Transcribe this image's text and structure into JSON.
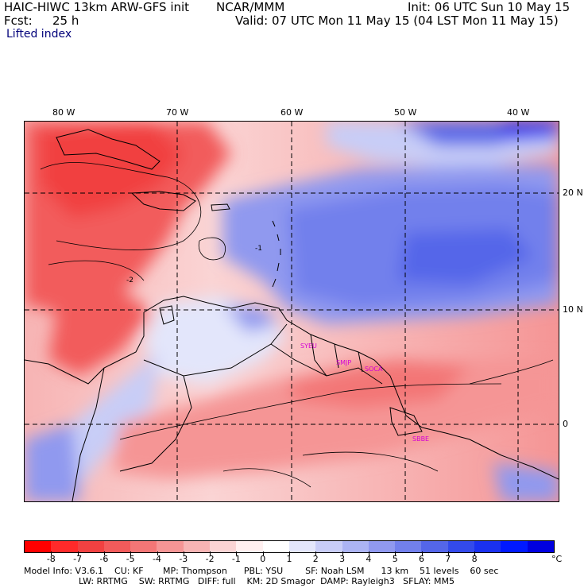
{
  "header": {
    "model_title": "HAIC-HIWC 13km ARW-GFS init",
    "org": "NCAR/MMM",
    "init": "Init: 06 UTC Sun 10 May 15",
    "fcst_label": "Fcst:",
    "fcst_value": "25 h",
    "valid": "Valid: 07 UTC Mon 11 May 15 (04 LST Mon 11 May 15)",
    "field": "Lifted index"
  },
  "map": {
    "lon_labels": [
      "80 W",
      "70 W",
      "60 W",
      "50 W",
      "40 W"
    ],
    "lat_labels": [
      "20 N",
      "10 N",
      "0"
    ],
    "stations": [
      "SYEU",
      "SMJP",
      "SOCA",
      "SBBE"
    ],
    "contour_labels": [
      "-2",
      "-1"
    ]
  },
  "colorbar": {
    "colors": [
      "#ff0000",
      "#ff2a2a",
      "#f14141",
      "#f25b5b",
      "#f37676",
      "#f59595",
      "#f7b4b4",
      "#fad4d4",
      "#fff0f0",
      "#ffffff",
      "#e3e6fb",
      "#c8cdf7",
      "#acb4f3",
      "#9099ef",
      "#7280ec",
      "#5466e9",
      "#334aeb",
      "#1a31f0",
      "#0019ff",
      "#0000e0"
    ],
    "tick_labels": [
      "-8",
      "-7",
      "-6",
      "-5",
      "-4",
      "-3",
      "-2",
      "-1",
      "0",
      "1",
      "2",
      "3",
      "4",
      "5",
      "6",
      "7",
      "8"
    ],
    "unit": "°C"
  },
  "model_info": {
    "line1": "Model Info: V3.6.1    CU: KF       MP: Thompson      PBL: YSU        SF: Noah LSM      13 km    51 levels    60 sec",
    "line2": "LW: RRTMG    SW: RRTMG   DIFF: full    KM: 2D Smagor  DAMP: Rayleigh3   SFLAY: MM5"
  }
}
